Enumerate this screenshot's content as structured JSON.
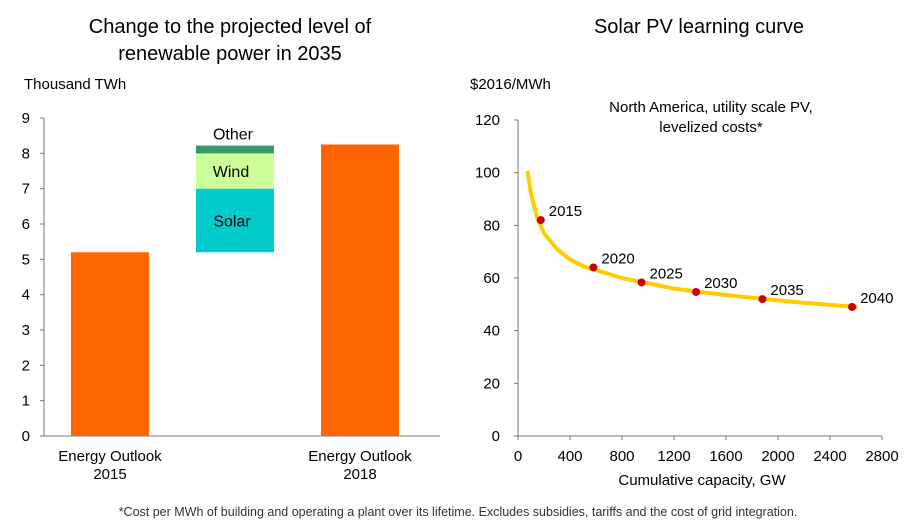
{
  "chart_data": [
    {
      "type": "bar",
      "variant": "waterfall",
      "title": "Change to the projected level of renewable power in 2035",
      "title_lines": [
        "Change to the projected level of",
        "renewable power in 2035"
      ],
      "ylabel": "Thousand TWh",
      "ylim": [
        0,
        9
      ],
      "yticks": [
        "0",
        "1",
        "2",
        "3",
        "4",
        "5",
        "6",
        "7",
        "8",
        "9"
      ],
      "categories": [
        {
          "label_lines": [
            "Energy Outlook",
            "2015"
          ],
          "value": 5.2
        },
        {
          "label_lines": [
            "",
            ""
          ],
          "value": null
        },
        {
          "label_lines": [
            "Energy Outlook",
            "2018"
          ],
          "value": 8.25
        }
      ],
      "increments": [
        {
          "name": "Solar",
          "base": 5.2,
          "value": 1.8
        },
        {
          "name": "Wind",
          "base": 7.0,
          "value": 1.0
        },
        {
          "name": "Other",
          "base": 8.0,
          "value": 0.22
        }
      ],
      "colors": {
        "total": "#ff6600",
        "Solar": "#00cccc",
        "Wind": "#ccff99",
        "Other": "#339966"
      },
      "grid": false,
      "legend": "none"
    },
    {
      "type": "line",
      "title": "Solar PV learning curve",
      "ylabel": "$2016/MWh",
      "xlabel": "Cumulative capacity, GW",
      "annotation_lines": [
        "North America, utility scale PV,",
        "levelized costs*"
      ],
      "xlim": [
        0,
        2800
      ],
      "ylim": [
        0,
        120
      ],
      "xticks": [
        "0",
        "400",
        "800",
        "1200",
        "1600",
        "2000",
        "2400",
        "2800"
      ],
      "yticks": [
        "0",
        "20",
        "40",
        "60",
        "80",
        "100",
        "120"
      ],
      "curve": {
        "x": [
          75,
          100,
          150,
          200,
          300,
          400,
          500,
          600,
          700,
          800,
          1000,
          1200,
          1400,
          1600,
          1800,
          2000,
          2200,
          2400,
          2600
        ],
        "y": [
          100,
          92,
          82.5,
          77,
          71,
          67,
          64.5,
          63,
          61.5,
          60,
          58,
          56,
          54.7,
          53.6,
          52.5,
          51.5,
          50.6,
          49.8,
          49
        ]
      },
      "points": [
        {
          "label": "2015",
          "x": 175,
          "y": 82
        },
        {
          "label": "2020",
          "x": 580,
          "y": 64
        },
        {
          "label": "2025",
          "x": 950,
          "y": 58.3
        },
        {
          "label": "2030",
          "x": 1370,
          "y": 54.7
        },
        {
          "label": "2035",
          "x": 1880,
          "y": 52
        },
        {
          "label": "2040",
          "x": 2570,
          "y": 49
        }
      ],
      "colors": {
        "line": "#ffcc00",
        "points": "#cc0000"
      },
      "grid": false,
      "legend": "none"
    }
  ],
  "footnote": "*Cost per MWh of building and operating a plant over its lifetime. Excludes subsidies, tariffs and the cost of grid integration."
}
